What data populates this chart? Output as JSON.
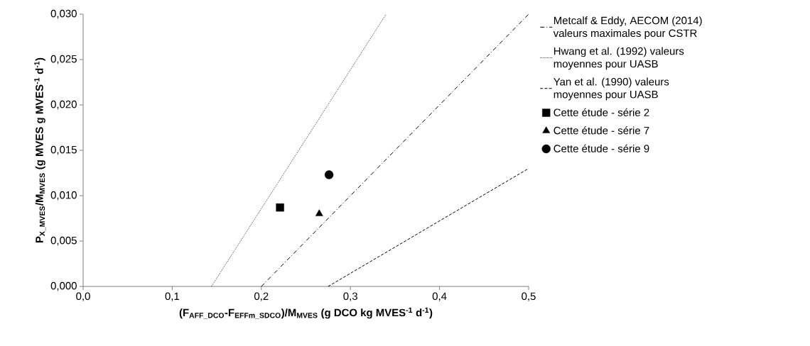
{
  "chart_data": {
    "type": "scatter",
    "xlabel": "(F$_{AFF_DCO}$-F$_{EFFm_SDCO}$)/M$_{MVES}$ (g DCO kg MVES$^{-1}$ d$^{-1}$)",
    "ylabel": "P$_{X_MVES}$/M$_{MVES}$ (g MVES g MVES$^{-1}$ d$^{-1}$)",
    "xlim": [
      0,
      0.5
    ],
    "ylim": [
      0,
      0.03
    ],
    "xticks": [
      {
        "value": 0,
        "label": "0,0"
      },
      {
        "value": 0.1,
        "label": "0,1"
      },
      {
        "value": 0.2,
        "label": "0,2"
      },
      {
        "value": 0.3,
        "label": "0,3"
      },
      {
        "value": 0.4,
        "label": "0,4"
      },
      {
        "value": 0.5,
        "label": "0,5"
      }
    ],
    "yticks": [
      {
        "value": 0,
        "label": "0,000"
      },
      {
        "value": 0.005,
        "label": "0,005"
      },
      {
        "value": 0.01,
        "label": "0,010"
      },
      {
        "value": 0.015,
        "label": "0,015"
      },
      {
        "value": 0.02,
        "label": "0,020"
      },
      {
        "value": 0.025,
        "label": "0,025"
      },
      {
        "value": 0.03,
        "label": "0,030"
      }
    ],
    "legend": "right",
    "series": [
      {
        "name": "Metcalf & Eddy, AECOM (2014) valeurs maximales  pour CSTR",
        "type": "line",
        "line_style": "dashdot",
        "marker": "none",
        "color": "#000000",
        "x": [
          0.2,
          0.5
        ],
        "values": [
          0,
          0.03
        ]
      },
      {
        "name": "Hwang et al. (1992) valeurs moyennes pour UASB",
        "type": "line",
        "line_style": "dotted",
        "marker": "none",
        "color": "#000000",
        "x": [
          0.144,
          0.34
        ],
        "values": [
          0,
          0.03
        ]
      },
      {
        "name": "Yan et al. (1990) valeurs moyennes pour UASB",
        "type": "line",
        "line_style": "dashed",
        "marker": "none",
        "color": "#000000",
        "x": [
          0.275,
          0.5
        ],
        "values": [
          0,
          0.013
        ]
      },
      {
        "name": "Cette étude - série 2",
        "marker": "square",
        "color": "#000000",
        "x": [
          0.221
        ],
        "values": [
          0.0087
        ]
      },
      {
        "name": "Cette étude - série 7",
        "marker": "triangle",
        "color": "#000000",
        "x": [
          0.265
        ],
        "values": [
          0.008
        ]
      },
      {
        "name": "Cette étude - série 9",
        "marker": "circle",
        "color": "#000000",
        "x": [
          0.276
        ],
        "values": [
          0.0123
        ]
      }
    ]
  }
}
